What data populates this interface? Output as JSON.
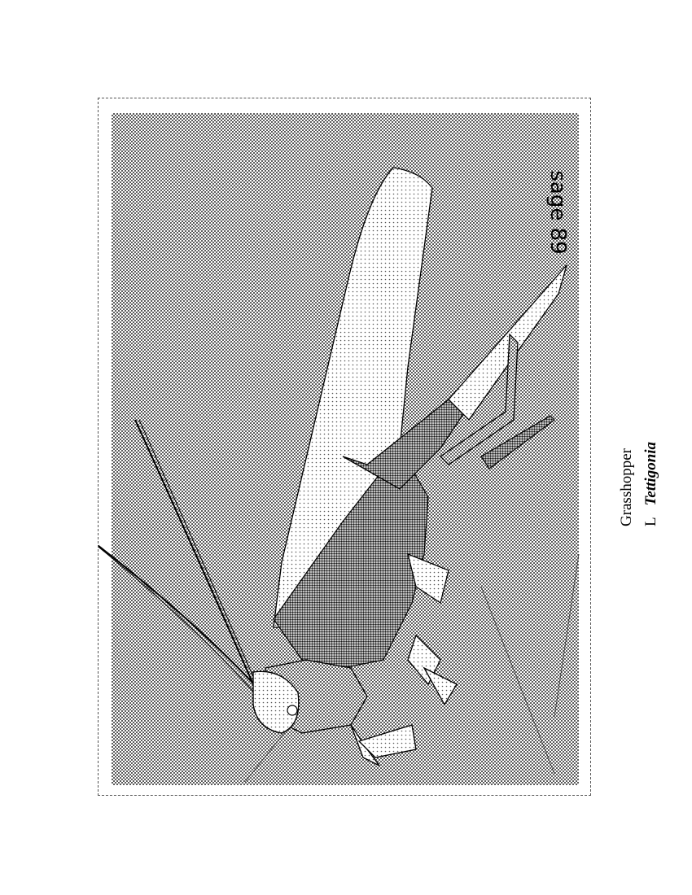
{
  "plate": {
    "signature": "sage 89",
    "subject": "grasshopper",
    "palette": {
      "ink": "#000000",
      "paper": "#ffffff",
      "halftone": "#3a3a3a"
    }
  },
  "caption": {
    "common_name": "Grasshopper",
    "letter": "L",
    "genus": "Tettigonia"
  }
}
